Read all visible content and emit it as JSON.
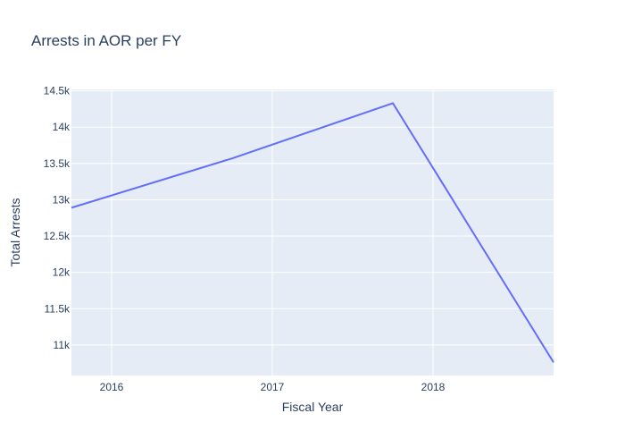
{
  "chart_data": {
    "type": "line",
    "title": "Arrests in AOR per FY",
    "xlabel": "Fiscal Year",
    "ylabel": "Total Arrests",
    "x": [
      2015.75,
      2016.75,
      2017.75,
      2018.75
    ],
    "xlim": [
      2015.75,
      2018.75
    ],
    "ylim": [
      10580,
      14520
    ],
    "x_ticks": [
      2016,
      2017,
      2018
    ],
    "x_tick_labels": [
      "2016",
      "2017",
      "2018"
    ],
    "y_ticks": [
      11000,
      11500,
      12000,
      12500,
      13000,
      13500,
      14000,
      14500
    ],
    "y_tick_labels": [
      "11k",
      "11.5k",
      "12k",
      "12.5k",
      "13k",
      "13.5k",
      "14k",
      "14.5k"
    ],
    "series": [
      {
        "values": [
          12890,
          13570,
          14330,
          10760
        ],
        "color": "#636efa"
      }
    ],
    "grid": true,
    "plot_background": "#e5ecf6",
    "grid_color": "#ffffff"
  }
}
